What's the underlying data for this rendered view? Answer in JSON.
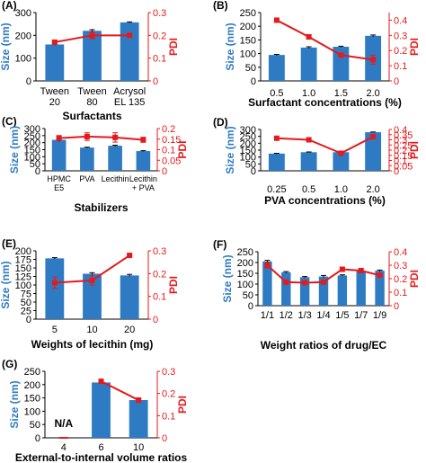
{
  "colors": {
    "bar": "#2e7bc4",
    "pdi": "#e41a1c",
    "axis_left": "#2e7bc4",
    "axis_right": "#e41a1c"
  },
  "chart_data": [
    {
      "panel": "(A)",
      "type": "bar",
      "categories": [
        [
          "Tween",
          "20"
        ],
        [
          "Tween",
          "80"
        ],
        [
          "Acrysol",
          "EL 135"
        ]
      ],
      "values": [
        160,
        220,
        257
      ],
      "err": [
        4,
        5,
        2
      ],
      "line": [
        0.17,
        0.2,
        0.2
      ],
      "line_err": [
        0.008,
        0.015,
        0.005
      ],
      "ylabel": "Size (nm)",
      "y2label": "PDI",
      "xlabel": "Surfactants",
      "ylim": [
        0,
        300
      ],
      "yticks": [
        0,
        100,
        200,
        300
      ],
      "y2lim": [
        0,
        0.3
      ],
      "y2ticks": [
        0,
        0.1,
        0.2,
        0.3
      ]
    },
    {
      "panel": "(B)",
      "type": "bar",
      "categories": [
        [
          "0.5"
        ],
        [
          "1.0"
        ],
        [
          "1.5"
        ],
        [
          "2.0"
        ]
      ],
      "values": [
        95,
        122,
        125,
        165
      ],
      "err": [
        2,
        3,
        2,
        3
      ],
      "line": [
        0.4,
        0.29,
        0.17,
        0.14
      ],
      "line_err": [
        0.008,
        0.015,
        0.01,
        0.03
      ],
      "ylabel": "Size (nm)",
      "y2label": "PDI",
      "xlabel": "Surfactant concentrations (%)",
      "ylim": [
        0,
        250
      ],
      "yticks": [
        0,
        50,
        100,
        150,
        200,
        250
      ],
      "y2lim": [
        0,
        0.45
      ],
      "y2ticks": [
        0,
        0.1,
        0.2,
        0.3,
        0.4
      ]
    },
    {
      "panel": "(C)",
      "type": "bar",
      "categories": [
        [
          "HPMC",
          "E5"
        ],
        [
          "PVA"
        ],
        [
          "Lecithin"
        ],
        [
          "Lecithin",
          "+ PVA"
        ]
      ],
      "values": [
        220,
        165,
        178,
        140
      ],
      "err": [
        12,
        3,
        4,
        3
      ],
      "line": [
        0.155,
        0.162,
        0.158,
        0.147
      ],
      "line_err": [
        0.012,
        0.018,
        0.022,
        0.012
      ],
      "ylabel": "Size (nm)",
      "y2label": "PDI",
      "xlabel": "Stabilizers",
      "ylim": [
        0,
        300
      ],
      "yticks": [
        0,
        50,
        100,
        150,
        200,
        250,
        300
      ],
      "y2lim": [
        0,
        0.2
      ],
      "y2ticks": [
        0,
        0.05,
        0.1,
        0.15,
        0.2
      ]
    },
    {
      "panel": "(D)",
      "type": "bar",
      "categories": [
        [
          "0.25"
        ],
        [
          "0.5"
        ],
        [
          "1.0"
        ],
        [
          "2.0"
        ]
      ],
      "values": [
        125,
        135,
        135,
        280
      ],
      "err": [
        2,
        2,
        4,
        2
      ],
      "line": [
        0.315,
        0.3,
        0.17,
        0.33
      ],
      "line_err": [
        0,
        0,
        0.01,
        0
      ],
      "ylabel": "Size (nm)",
      "y2label": "PDI",
      "xlabel": "PVA concentrations (%)",
      "ylim": [
        0,
        300
      ],
      "yticks": [
        0,
        50,
        100,
        150,
        200,
        250,
        300
      ],
      "y2lim": [
        0,
        0.4
      ],
      "y2ticks": [
        0,
        0.05,
        0.1,
        0.15,
        0.2,
        0.25,
        0.3,
        0.35,
        0.4
      ]
    },
    {
      "panel": "(E)",
      "type": "bar",
      "categories": [
        [
          "5"
        ],
        [
          "10"
        ],
        [
          "20"
        ]
      ],
      "values": [
        178,
        133,
        128
      ],
      "err": [
        2,
        3,
        3
      ],
      "line": [
        0.16,
        0.17,
        0.28
      ],
      "line_err": [
        0.025,
        0.02,
        0.005
      ],
      "ylabel": "Size (nm)",
      "y2label": "PDI",
      "xlabel": "Weights of lecithin (mg)",
      "ylim": [
        0,
        200
      ],
      "yticks": [
        0,
        25,
        50,
        75,
        100,
        125,
        150,
        175,
        200
      ],
      "y2lim": [
        0,
        0.3
      ],
      "y2ticks": [
        0,
        0.1,
        0.2,
        0.3
      ]
    },
    {
      "panel": "(F)",
      "type": "bar",
      "categories": [
        [
          "1/1"
        ],
        [
          "1/2"
        ],
        [
          "1/3"
        ],
        [
          "1/4"
        ],
        [
          "1/5"
        ],
        [
          "1/7"
        ],
        [
          "1/9"
        ]
      ],
      "values": [
        205,
        155,
        132,
        135,
        140,
        160,
        162
      ],
      "err": [
        5,
        3,
        3,
        5,
        3,
        3,
        3
      ],
      "line": [
        0.3,
        0.175,
        0.17,
        0.175,
        0.27,
        0.26,
        0.225
      ],
      "line_err": [
        0.02,
        0.012,
        0.008,
        0.012,
        0.012,
        0.015,
        0.015
      ],
      "ylabel": "Size (nm)",
      "y2label": "PDI",
      "xlabel": "Weight ratios of drug/EC",
      "ylim": [
        0,
        250
      ],
      "yticks": [
        0,
        50,
        100,
        150,
        200,
        250
      ],
      "y2lim": [
        0,
        0.4
      ],
      "y2ticks": [
        0,
        0.1,
        0.2,
        0.3,
        0.4
      ]
    },
    {
      "panel": "(G)",
      "type": "bar",
      "categories": [
        [
          "4"
        ],
        [
          "6"
        ],
        [
          "10"
        ]
      ],
      "values": [
        null,
        208,
        142
      ],
      "err": [
        0,
        4,
        5
      ],
      "line": [
        null,
        0.255,
        0.17
      ],
      "line_err": [
        0,
        0.005,
        0.01
      ],
      "annotation": "N/A",
      "ylabel": "Size (nm)",
      "y2label": "PDI",
      "xlabel": "External-to-internal volume ratios",
      "ylim": [
        0,
        250
      ],
      "yticks": [
        0,
        50,
        100,
        150,
        200,
        250
      ],
      "y2lim": [
        0,
        0.3
      ],
      "y2ticks": [
        0,
        0.1,
        0.2,
        0.3
      ]
    }
  ]
}
